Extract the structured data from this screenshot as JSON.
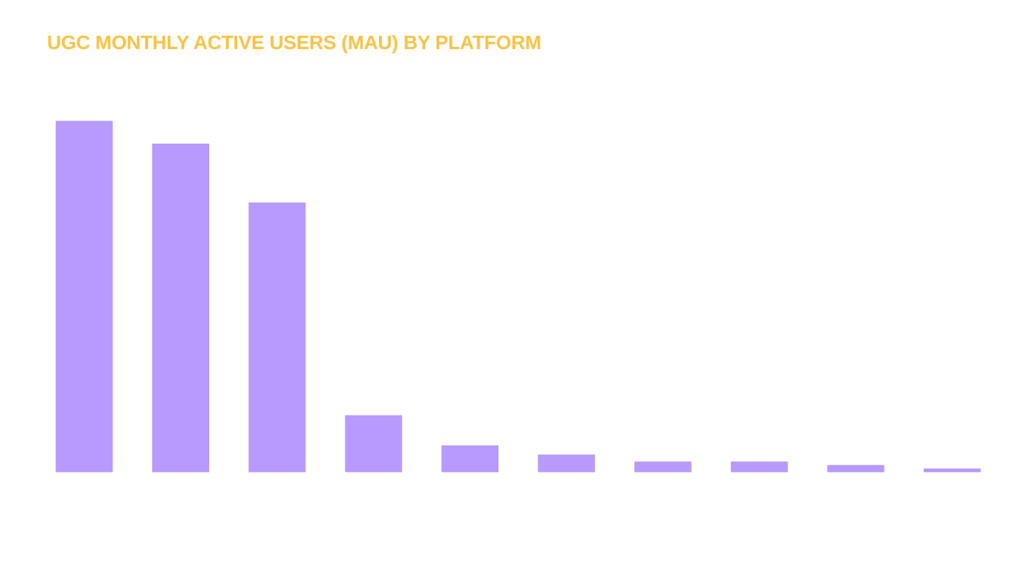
{
  "colors": {
    "title": "#F5C242",
    "bar": "#B899FD",
    "bar_edge": "#A98CF0",
    "background": "#FFFFFF"
  },
  "chart_data": {
    "type": "bar",
    "title": "UGC MONTHLY ACTIVE USERS (MAU) BY PLATFORM",
    "xlabel": "",
    "ylabel": "",
    "categories": [
      "",
      "",
      "",
      "",
      "",
      "",
      "",
      "",
      "",
      ""
    ],
    "values": [
      100,
      93.5,
      76.7,
      16,
      7.4,
      4.8,
      2.8,
      2.8,
      1.8,
      0.8
    ],
    "ylim": [
      0,
      100
    ],
    "grid": false,
    "legend": "none",
    "tick_labels_visible": false
  }
}
